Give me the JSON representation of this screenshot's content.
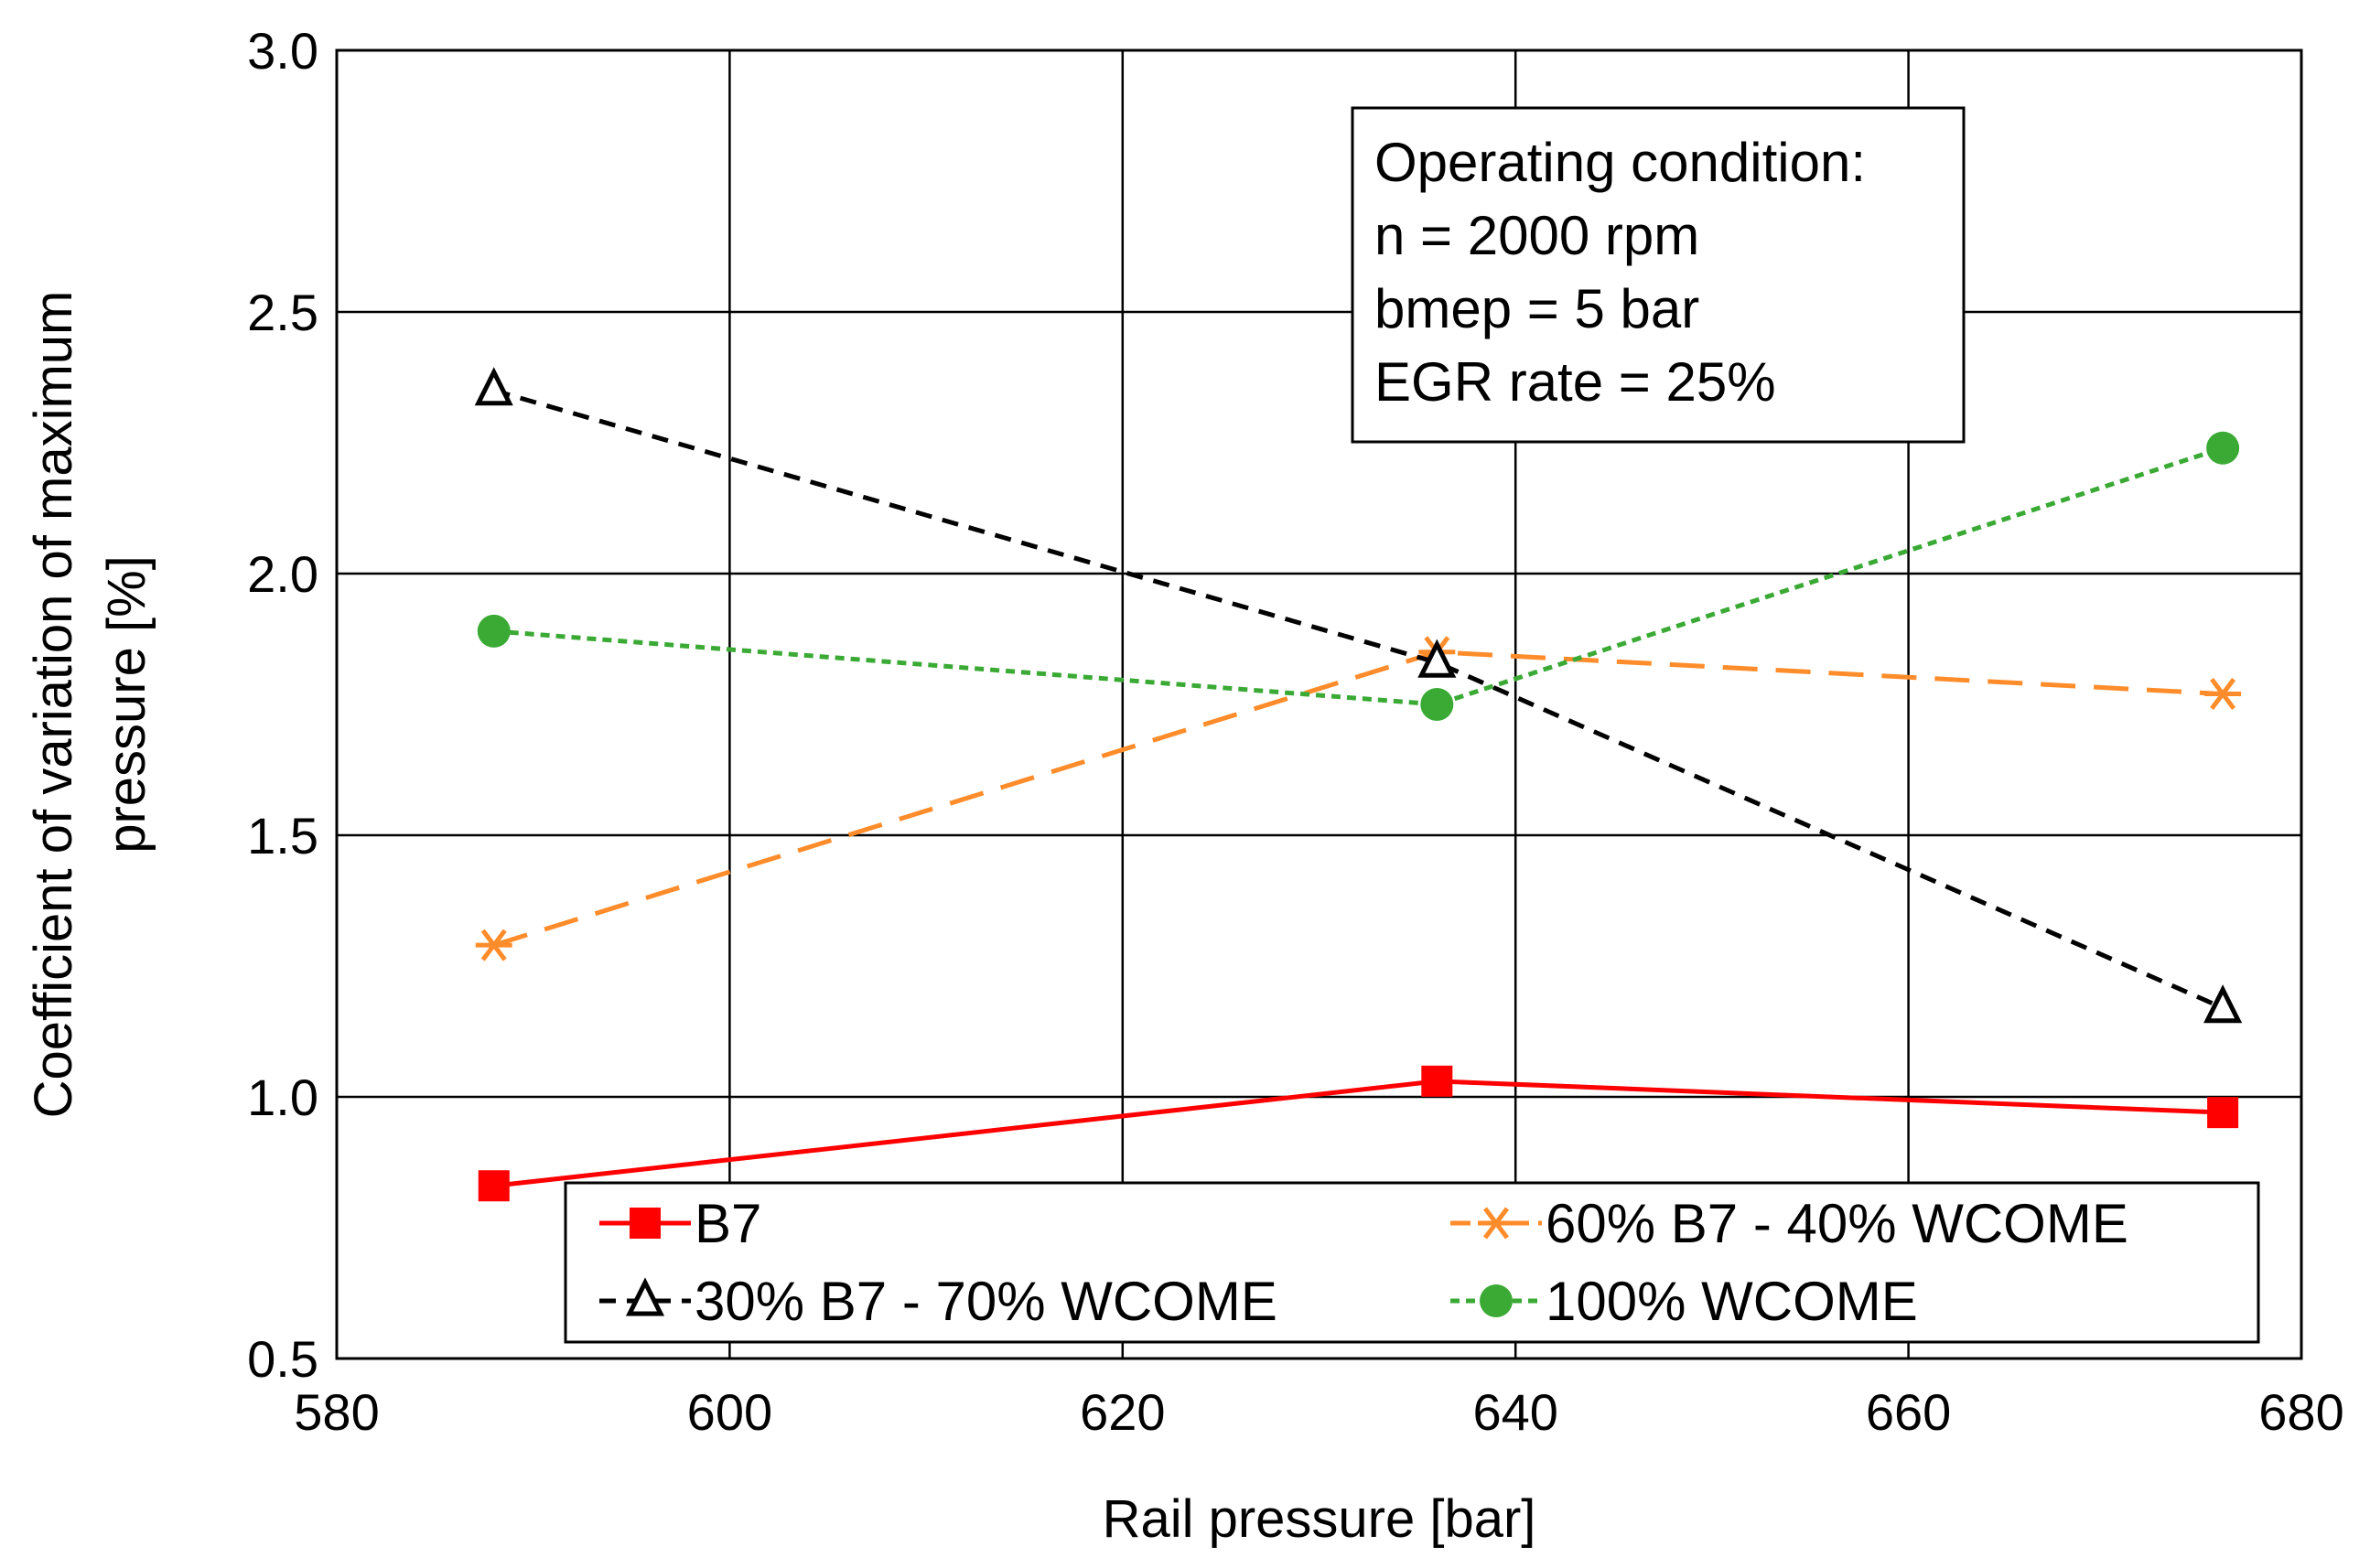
{
  "chart_data": {
    "type": "line",
    "title": "",
    "xlabel": "Rail pressure [bar]",
    "ylabel_lines": [
      "Coefficient of variation of maximum",
      "pressure [%]"
    ],
    "xlim": [
      580,
      680
    ],
    "ylim": [
      0.5,
      3.0
    ],
    "x_ticks": [
      580,
      600,
      620,
      640,
      660,
      680
    ],
    "y_ticks": [
      0.5,
      1.0,
      1.5,
      2.0,
      2.5,
      3.0
    ],
    "x_tick_labels": [
      "580",
      "600",
      "620",
      "640",
      "660",
      "680"
    ],
    "y_tick_labels": [
      "0.5",
      "1.0",
      "1.5",
      "2.0",
      "2.5",
      "3.0"
    ],
    "grid": true,
    "series": [
      {
        "name": "B7",
        "x": [
          588,
          636,
          676
        ],
        "values": [
          0.83,
          1.03,
          0.97
        ],
        "color": "#ff0000",
        "marker": "square",
        "dash": "solid"
      },
      {
        "name": "60% B7 - 40% WCOME",
        "x": [
          588,
          636,
          676
        ],
        "values": [
          1.29,
          1.85,
          1.77
        ],
        "color": "#ff8c2a",
        "marker": "asterisk",
        "dash": "long-dash"
      },
      {
        "name": "30% B7 - 70% WCOME",
        "x": [
          588,
          636,
          676
        ],
        "values": [
          2.35,
          1.83,
          1.17
        ],
        "color": "#000000",
        "marker": "triangle",
        "dash": "dash"
      },
      {
        "name": "100% WCOME",
        "x": [
          588,
          636,
          676
        ],
        "values": [
          1.89,
          1.75,
          2.24
        ],
        "color": "#3aaa35",
        "marker": "circle",
        "dash": "short-dash"
      }
    ],
    "legend_location": "bottom",
    "annotation_lines": [
      "Operating condition:",
      "n = 2000 rpm",
      "bmep = 5 bar",
      "EGR rate = 25%"
    ]
  }
}
